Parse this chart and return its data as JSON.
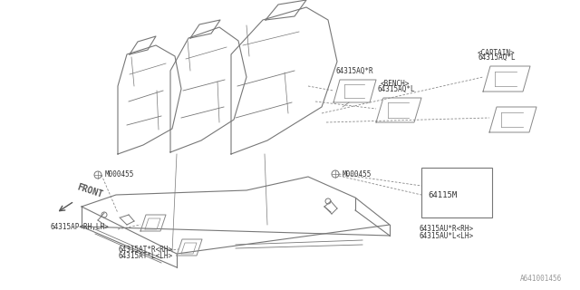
{
  "background_color": "#ffffff",
  "line_color": "#888888",
  "text_color": "#333333",
  "labels": {
    "lbl_aq_r": "64315AQ*R",
    "lbl_aq_l_bench_line1": "64315AQ*L",
    "lbl_aq_l_bench_line2": "<BENCH>",
    "lbl_aq_l_captain_line1": "64315AQ*L",
    "lbl_aq_l_captain_line2": "<CAPTAIN>",
    "lbl_bolt1": "M000455",
    "lbl_bolt2": "M000455",
    "lbl_ap": "64315AP<RH,LH>",
    "lbl_at_line1": "64315AT*R<RH>",
    "lbl_at_line2": "64315AT*L<LH>",
    "lbl_au_box": "64115M",
    "lbl_au_rh": "64315AU*R<RH>",
    "lbl_au_lh": "64315AU*L<LH>",
    "lbl_front": "FRONT",
    "diagram_id": "A641001456"
  }
}
